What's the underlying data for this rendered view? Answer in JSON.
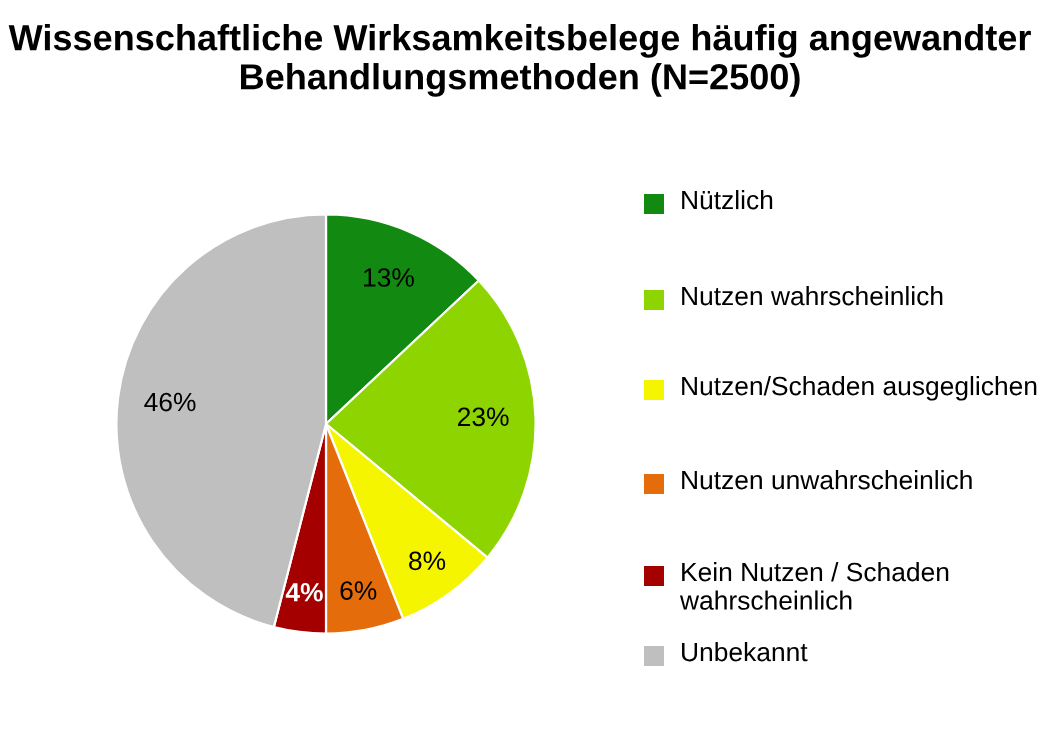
{
  "chart_data": {
    "type": "pie",
    "title": "Wissenschaftliche Wirksamkeitsbelege häufig angewandter Behandlungsmethoden (N=2500)",
    "categories": [
      "Nützlich",
      "Nutzen wahrscheinlich",
      "Nutzen/Schaden ausgeglichen",
      "Nutzen unwahrscheinlich",
      "Kein Nutzen / Schaden wahrscheinlich",
      "Unbekannt"
    ],
    "values": [
      13,
      23,
      8,
      6,
      4,
      46
    ],
    "colors": [
      "#128a12",
      "#8ed400",
      "#f5f500",
      "#e46c0a",
      "#a50000",
      "#bfbfbf"
    ],
    "value_labels": [
      "13%",
      "23%",
      "8%",
      "6%",
      "4%",
      "46%"
    ],
    "legend": "right"
  }
}
